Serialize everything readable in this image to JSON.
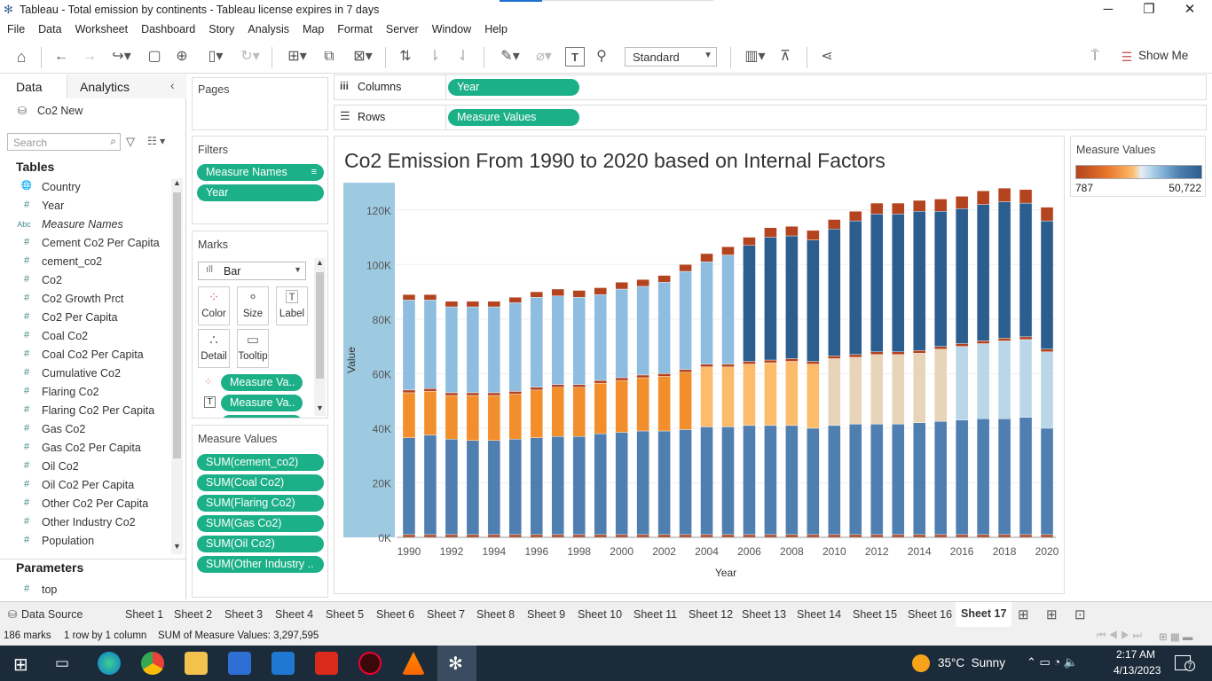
{
  "window": {
    "title": "Tableau - Total emission by continents - Tableau license expires in 7 days"
  },
  "menu": [
    "File",
    "Data",
    "Worksheet",
    "Dashboard",
    "Story",
    "Analysis",
    "Map",
    "Format",
    "Server",
    "Window",
    "Help"
  ],
  "toolbar": {
    "fit_select": "Standard",
    "show_me": "Show Me"
  },
  "left": {
    "tab_data": "Data",
    "tab_analytics": "Analytics",
    "datasource": "Co2 New",
    "search_placeholder": "Search",
    "tables_title": "Tables",
    "fields": [
      {
        "icon": "globe",
        "label": "Country"
      },
      {
        "icon": "#",
        "label": "Year"
      },
      {
        "icon": "Abc",
        "label": "Measure Names"
      },
      {
        "icon": "#",
        "label": "Cement Co2 Per Capita"
      },
      {
        "icon": "#",
        "label": "cement_co2"
      },
      {
        "icon": "#",
        "label": "Co2"
      },
      {
        "icon": "#",
        "label": "Co2 Growth Prct"
      },
      {
        "icon": "#",
        "label": "Co2 Per Capita"
      },
      {
        "icon": "#",
        "label": "Coal Co2"
      },
      {
        "icon": "#",
        "label": "Coal Co2 Per Capita"
      },
      {
        "icon": "#",
        "label": "Cumulative Co2"
      },
      {
        "icon": "#",
        "label": "Flaring Co2"
      },
      {
        "icon": "#",
        "label": "Flaring Co2 Per Capita"
      },
      {
        "icon": "#",
        "label": "Gas Co2"
      },
      {
        "icon": "#",
        "label": "Gas Co2 Per Capita"
      },
      {
        "icon": "#",
        "label": "Oil Co2"
      },
      {
        "icon": "#",
        "label": "Oil Co2 Per Capita"
      },
      {
        "icon": "#",
        "label": "Other Co2 Per Capita"
      },
      {
        "icon": "#",
        "label": "Other Industry Co2"
      },
      {
        "icon": "#",
        "label": "Population"
      }
    ],
    "parameters_title": "Parameters",
    "parameter": {
      "icon": "#",
      "label": "top"
    }
  },
  "cards": {
    "pages": "Pages",
    "filters": "Filters",
    "filter_pills": [
      "Measure Names",
      "Year"
    ],
    "marks": "Marks",
    "mark_type": "Bar",
    "mark_buttons": [
      "Color",
      "Size",
      "Label",
      "Detail",
      "Tooltip"
    ],
    "mark_pills": [
      "Measure Va..",
      "Measure Va.."
    ],
    "measure_values": "Measure Values",
    "measure_pills": [
      "SUM(cement_co2)",
      "SUM(Coal Co2)",
      "SUM(Flaring Co2)",
      "SUM(Gas Co2)",
      "SUM(Oil Co2)",
      "SUM(Other Industry .."
    ]
  },
  "shelves": {
    "columns_label": "Columns",
    "columns_pill": "Year",
    "rows_label": "Rows",
    "rows_pill": "Measure Values"
  },
  "legend": {
    "title": "Measure Values",
    "min": "787",
    "max": "50,722"
  },
  "chart_data": {
    "type": "bar",
    "title": "Co2 Emission From 1990 to 2020 based on Internal Factors",
    "xlabel": "Year",
    "ylabel": "Value",
    "ylim": [
      0,
      130000
    ],
    "yticks": [
      "0K",
      "20K",
      "40K",
      "60K",
      "80K",
      "100K",
      "120K"
    ],
    "xticks": [
      "1990",
      "1992",
      "1994",
      "1996",
      "1998",
      "2000",
      "2002",
      "2004",
      "2006",
      "2008",
      "2010",
      "2012",
      "2014",
      "2016",
      "2018",
      "2020"
    ],
    "categories": [
      1990,
      1991,
      1992,
      1993,
      1994,
      1995,
      1996,
      1997,
      1998,
      1999,
      2000,
      2001,
      2002,
      2003,
      2004,
      2005,
      2006,
      2007,
      2008,
      2009,
      2010,
      2011,
      2012,
      2013,
      2014,
      2015,
      2016,
      2017,
      2018,
      2019,
      2020
    ],
    "series": [
      {
        "values": [
          1000,
          1000,
          1000,
          1000,
          1000,
          1000,
          1000,
          1000,
          1000,
          1000,
          1000,
          1000,
          1000,
          1000,
          1000,
          1000,
          1000,
          1000,
          1000,
          1000,
          1000,
          1000,
          1000,
          1000,
          1000,
          1000,
          1000,
          1000,
          1000,
          1000,
          1000
        ]
      },
      {
        "values": [
          35500,
          36500,
          35000,
          34500,
          34500,
          35000,
          35500,
          36000,
          36000,
          37000,
          37500,
          38000,
          38000,
          38500,
          39500,
          39500,
          40000,
          40000,
          40000,
          39000,
          40000,
          40500,
          40500,
          40500,
          41000,
          41500,
          42000,
          42500,
          42500,
          43000,
          39000
        ]
      },
      {
        "values": [
          16500,
          16000,
          16000,
          16500,
          16500,
          16500,
          17500,
          18000,
          18000,
          18500,
          19000,
          19500,
          20000,
          21000,
          22000,
          22000,
          22500,
          23000,
          23500,
          23500,
          24500,
          24500,
          25500,
          25500,
          25500,
          26500,
          27000,
          27500,
          28500,
          28500,
          28000
        ]
      },
      {
        "values": [
          1000,
          1000,
          1000,
          1000,
          1000,
          1000,
          1000,
          1000,
          1000,
          1000,
          1000,
          1000,
          1000,
          1000,
          1000,
          1000,
          1000,
          1000,
          1000,
          1000,
          1000,
          1000,
          1000,
          1000,
          1000,
          1000,
          1000,
          1000,
          1000,
          1000,
          1000
        ]
      },
      {
        "values": [
          33000,
          32500,
          31500,
          31500,
          31500,
          32500,
          33000,
          32500,
          32000,
          31500,
          32500,
          32500,
          33500,
          36000,
          37500,
          40000,
          42500,
          45000,
          45000,
          44500,
          46500,
          49000,
          50500,
          50500,
          51000,
          49500,
          49500,
          50000,
          50000,
          49000,
          47000
        ]
      },
      {
        "values": [
          2000,
          2000,
          2000,
          2000,
          2000,
          2000,
          2000,
          2500,
          2500,
          2500,
          2500,
          2500,
          2500,
          2500,
          3000,
          3000,
          3000,
          3500,
          3500,
          3500,
          3500,
          3500,
          4000,
          4000,
          4000,
          4500,
          4500,
          5000,
          5000,
          5000,
          5000
        ]
      }
    ]
  },
  "bottom_tabs": [
    "Data Source",
    "Sheet 1",
    "Sheet 2",
    "Sheet 3",
    "Sheet 4",
    "Sheet 5",
    "Sheet 6",
    "Sheet 7",
    "Sheet 8",
    "Sheet 9",
    "Sheet 10",
    "Sheet 11",
    "Sheet 12",
    "Sheet 13",
    "Sheet 14",
    "Sheet 15",
    "Sheet 16",
    "Sheet 17"
  ],
  "status": {
    "marks": "186 marks",
    "rows": "1 row by 1 column",
    "sum": "SUM of Measure Values: 3,297,595"
  },
  "taskbar": {
    "weather": "35°C  Sunny",
    "time": "2:17 AM",
    "date": "4/13/2023",
    "notif": "7"
  },
  "colors": {
    "accent_pill": "#1cb088",
    "dark_blue": "#2b5d8e",
    "mid_blue": "#4f7fb0",
    "light_blue": "#8fbde0",
    "orange": "#f28e2b",
    "light_orange": "#fdbb6c",
    "tan": "#e8d4b8",
    "rust": "#b4441f"
  }
}
